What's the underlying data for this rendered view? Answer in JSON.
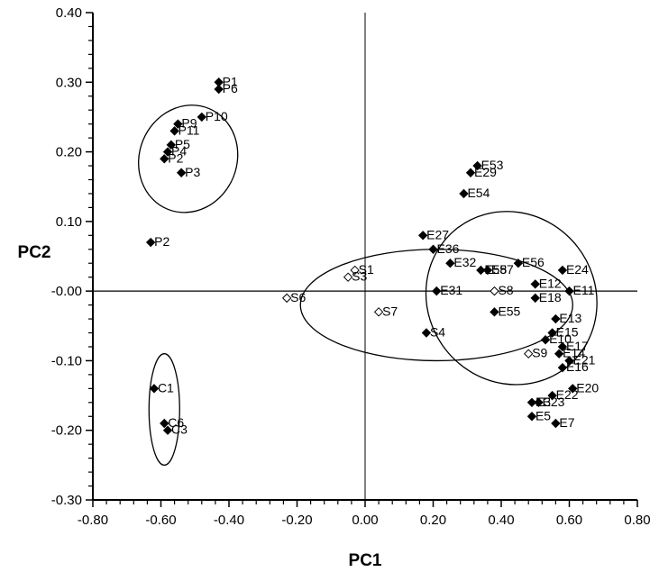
{
  "chart_data": {
    "type": "scatter",
    "xlabel": "PC1",
    "ylabel": "PC2",
    "xlim": [
      -0.8,
      0.8
    ],
    "ylim": [
      -0.3,
      0.4
    ],
    "x_ticks": [
      -0.8,
      -0.6,
      -0.4,
      -0.2,
      0.0,
      0.2,
      0.4,
      0.6,
      0.8
    ],
    "x_tick_labels": [
      "-0.80",
      "-0.60",
      "-0.40",
      "-0.20",
      "0.00",
      "0.20",
      "0.40",
      "0.60",
      "0.80"
    ],
    "y_ticks": [
      0.4,
      0.3,
      0.2,
      0.1,
      0.0,
      -0.1,
      -0.2,
      -0.3
    ],
    "y_tick_labels": [
      "0.40",
      "0.30",
      "0.20",
      "0.10",
      "-0.00",
      "-0.10",
      "-0.20",
      "-0.30"
    ],
    "grid": false,
    "reference_lines": {
      "x": 0.0,
      "y": 0.0
    },
    "points": [
      {
        "label": "P1",
        "x": -0.43,
        "y": 0.3,
        "marker": "filled"
      },
      {
        "label": "P6",
        "x": -0.43,
        "y": 0.29,
        "marker": "filled"
      },
      {
        "label": "P10",
        "x": -0.48,
        "y": 0.25,
        "marker": "filled"
      },
      {
        "label": "P9",
        "x": -0.55,
        "y": 0.24,
        "marker": "filled"
      },
      {
        "label": "P11",
        "x": -0.56,
        "y": 0.23,
        "marker": "filled"
      },
      {
        "label": "P5",
        "x": -0.57,
        "y": 0.21,
        "marker": "filled"
      },
      {
        "label": "P4",
        "x": -0.58,
        "y": 0.2,
        "marker": "filled"
      },
      {
        "label": "P2",
        "x": -0.59,
        "y": 0.19,
        "marker": "filled"
      },
      {
        "label": "P3",
        "x": -0.54,
        "y": 0.17,
        "marker": "filled"
      },
      {
        "label": "P2",
        "x": -0.63,
        "y": 0.07,
        "marker": "filled"
      },
      {
        "label": "C1",
        "x": -0.62,
        "y": -0.14,
        "marker": "filled"
      },
      {
        "label": "C6",
        "x": -0.59,
        "y": -0.19,
        "marker": "filled"
      },
      {
        "label": "C3",
        "x": -0.58,
        "y": -0.2,
        "marker": "filled"
      },
      {
        "label": "S1",
        "x": -0.03,
        "y": 0.03,
        "marker": "open"
      },
      {
        "label": "S3",
        "x": -0.05,
        "y": 0.02,
        "marker": "open"
      },
      {
        "label": "S6",
        "x": -0.23,
        "y": -0.01,
        "marker": "open"
      },
      {
        "label": "S7",
        "x": 0.04,
        "y": -0.03,
        "marker": "open"
      },
      {
        "label": "S4",
        "x": 0.18,
        "y": -0.06,
        "marker": "filled"
      },
      {
        "label": "S8",
        "x": 0.38,
        "y": 0.0,
        "marker": "open"
      },
      {
        "label": "S9",
        "x": 0.48,
        "y": -0.09,
        "marker": "open"
      },
      {
        "label": "E53",
        "x": 0.33,
        "y": 0.18,
        "marker": "filled"
      },
      {
        "label": "E29",
        "x": 0.31,
        "y": 0.17,
        "marker": "filled"
      },
      {
        "label": "E54",
        "x": 0.29,
        "y": 0.14,
        "marker": "filled"
      },
      {
        "label": "E27",
        "x": 0.17,
        "y": 0.08,
        "marker": "filled"
      },
      {
        "label": "E36",
        "x": 0.2,
        "y": 0.06,
        "marker": "filled"
      },
      {
        "label": "E32",
        "x": 0.25,
        "y": 0.04,
        "marker": "filled"
      },
      {
        "label": "E58",
        "x": 0.34,
        "y": 0.03,
        "marker": "filled"
      },
      {
        "label": "E57",
        "x": 0.36,
        "y": 0.03,
        "marker": "filled"
      },
      {
        "label": "E56",
        "x": 0.45,
        "y": 0.04,
        "marker": "filled"
      },
      {
        "label": "E12",
        "x": 0.5,
        "y": 0.01,
        "marker": "filled"
      },
      {
        "label": "E24",
        "x": 0.58,
        "y": 0.03,
        "marker": "filled"
      },
      {
        "label": "E31",
        "x": 0.21,
        "y": 0.0,
        "marker": "filled"
      },
      {
        "label": "E18",
        "x": 0.5,
        "y": -0.01,
        "marker": "filled"
      },
      {
        "label": "E11",
        "x": 0.6,
        "y": 0.0,
        "marker": "filled"
      },
      {
        "label": "E55",
        "x": 0.38,
        "y": -0.03,
        "marker": "filled"
      },
      {
        "label": "E13",
        "x": 0.56,
        "y": -0.04,
        "marker": "filled"
      },
      {
        "label": "E15",
        "x": 0.55,
        "y": -0.06,
        "marker": "filled"
      },
      {
        "label": "E10",
        "x": 0.53,
        "y": -0.07,
        "marker": "filled"
      },
      {
        "label": "E17",
        "x": 0.58,
        "y": -0.08,
        "marker": "filled"
      },
      {
        "label": "E14",
        "x": 0.57,
        "y": -0.09,
        "marker": "filled"
      },
      {
        "label": "E21",
        "x": 0.6,
        "y": -0.1,
        "marker": "filled"
      },
      {
        "label": "E16",
        "x": 0.58,
        "y": -0.11,
        "marker": "filled"
      },
      {
        "label": "E20",
        "x": 0.61,
        "y": -0.14,
        "marker": "filled"
      },
      {
        "label": "E22",
        "x": 0.55,
        "y": -0.15,
        "marker": "filled"
      },
      {
        "label": "E3",
        "x": 0.49,
        "y": -0.16,
        "marker": "filled"
      },
      {
        "label": "E23",
        "x": 0.51,
        "y": -0.16,
        "marker": "filled"
      },
      {
        "label": "E5",
        "x": 0.49,
        "y": -0.18,
        "marker": "filled"
      },
      {
        "label": "E7",
        "x": 0.56,
        "y": -0.19,
        "marker": "filled"
      }
    ],
    "ellipses": [
      {
        "name": "P",
        "cx": -0.52,
        "cy": 0.19,
        "rx": 0.16,
        "ry": 0.07,
        "angle": -68
      },
      {
        "name": "C",
        "cx": -0.59,
        "cy": -0.17,
        "rx": 0.045,
        "ry": 0.08,
        "angle": 0
      },
      {
        "name": "S",
        "cx": 0.21,
        "cy": -0.02,
        "rx": 0.4,
        "ry": 0.08,
        "angle": 0
      },
      {
        "name": "E",
        "cx": 0.43,
        "cy": -0.01,
        "rx": 0.26,
        "ry": 0.12,
        "angle": 52
      }
    ]
  }
}
